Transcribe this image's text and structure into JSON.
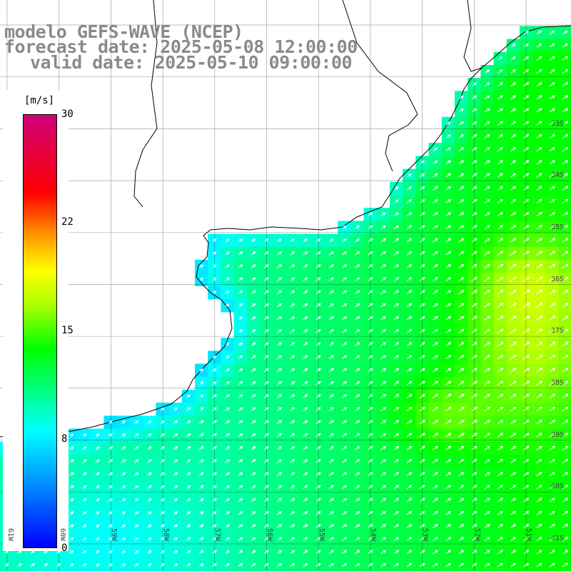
{
  "title": {
    "line1": "modelo GEFS-WAVE (NCEP)",
    "line2": "forecast date: 2025-05-08 12:00:00",
    "line3": "valid date: 2025-05-10 09:00:00"
  },
  "colorbar": {
    "unit": "[m/s]",
    "ticks": [
      {
        "label": "30",
        "value": 30
      },
      {
        "label": "22",
        "value": 22
      },
      {
        "label": "15",
        "value": 15
      },
      {
        "label": "8",
        "value": 8
      },
      {
        "label": "0",
        "value": 0
      }
    ],
    "colors": [
      "#0000ff",
      "#0088ff",
      "#00ffff",
      "#00ff00",
      "#aaff00",
      "#ffff00",
      "#ff9900",
      "#ff0000",
      "#cc0077"
    ]
  },
  "grid": {
    "lat_labels": [
      "33S",
      "34S",
      "35S",
      "36S",
      "37S",
      "38S",
      "39S",
      "40S",
      "41S"
    ],
    "lon_labels": [
      "61W",
      "60W",
      "59W",
      "58W",
      "57W",
      "56W",
      "55W",
      "54W",
      "53W",
      "52W",
      "51W"
    ]
  },
  "wind_field": {
    "direction": "toward north-east",
    "weakest_area": "coastal waters and south-west corner",
    "strongest_area": "offshore east, near 37S-39S"
  }
}
